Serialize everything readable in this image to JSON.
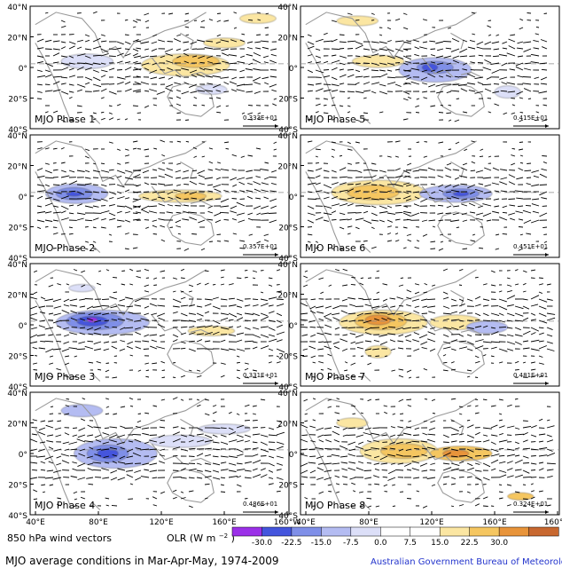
{
  "figure": {
    "title": "MJO average conditions in Mar-Apr-May, 1974-2009",
    "credit": "Australian Government Bureau of Meteorology",
    "wind_label": "850 hPa wind vectors",
    "olr_label": "OLR (W m",
    "olr_sup": "−2",
    "olr_close": ")"
  },
  "axes": {
    "lat_ticks": [
      "40°N",
      "20°N",
      "0°",
      "20°S",
      "40°S"
    ],
    "lon_ticks": [
      "40°E",
      "80°E",
      "120°E",
      "160°E",
      "160°W"
    ]
  },
  "colorbar": {
    "ticks": [
      "-30.0",
      "-22.5",
      "-15.0",
      "-7.5",
      "0.0",
      "7.5",
      "15.0",
      "22.5",
      "30.0"
    ],
    "colors": [
      "#9b30e8",
      "#4455dd",
      "#7f8fe8",
      "#b4bcf2",
      "#dcdff8",
      "#ffffff",
      "#ffffff",
      "#fbe6a2",
      "#f5c660",
      "#e8943a",
      "#c86830"
    ]
  },
  "panels": [
    {
      "label": "MJO Phase 1",
      "ref": "0.333E+01"
    },
    {
      "label": "MJO Phase 5",
      "ref": "0.415E+01"
    },
    {
      "label": "MJO Phase 2",
      "ref": "0.357E+01"
    },
    {
      "label": "MJO Phase 6",
      "ref": "0.451E+01"
    },
    {
      "label": "MJO Phase 3",
      "ref": "0.331E+01"
    },
    {
      "label": "MJO Phase 7",
      "ref": "0.481E+01"
    },
    {
      "label": "MJO Phase 4",
      "ref": "0.486E+01"
    },
    {
      "label": "MJO Phase 8",
      "ref": "0.324E+01"
    }
  ]
}
